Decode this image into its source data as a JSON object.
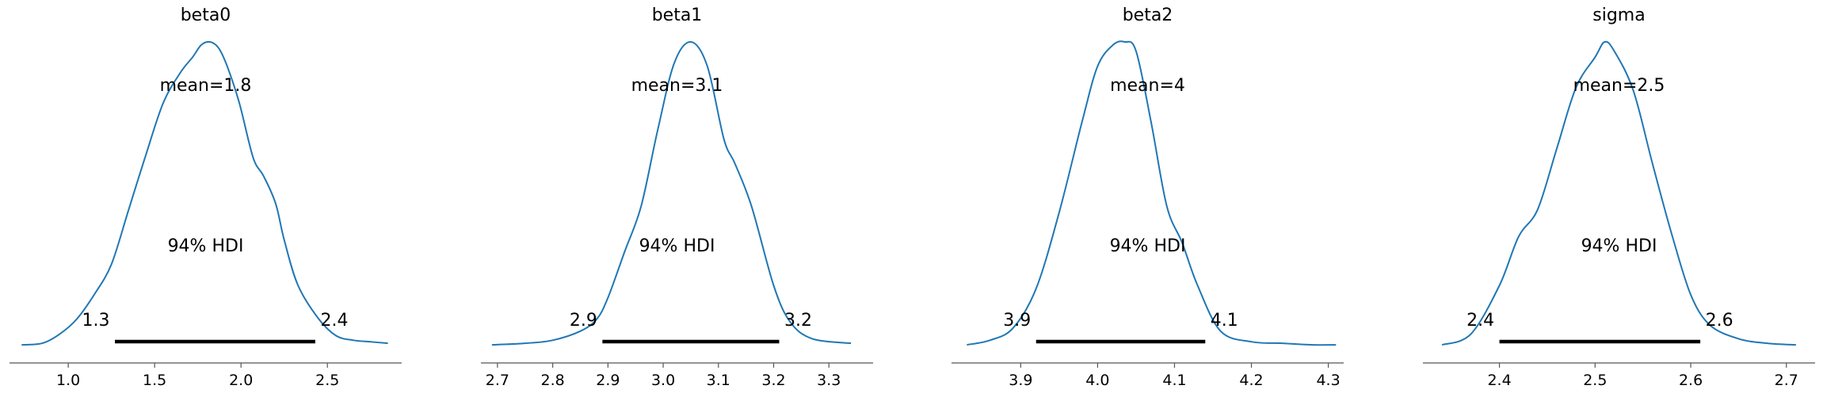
{
  "chart_data": [
    {
      "type": "area",
      "title": "beta0",
      "mean_label": "mean=1.8",
      "hdi_label": "94% HDI",
      "hdi": [
        1.27,
        2.43
      ],
      "hdi_low_label": "1.3",
      "hdi_high_label": "2.4",
      "xlim": [
        0.66,
        2.93
      ],
      "xticks": [
        1.0,
        1.5,
        2.0,
        2.5
      ],
      "xtick_labels": [
        "1.0",
        "1.5",
        "2.0",
        "2.5"
      ],
      "x": [
        0.73,
        0.85,
        0.95,
        1.05,
        1.15,
        1.25,
        1.35,
        1.45,
        1.55,
        1.65,
        1.72,
        1.77,
        1.82,
        1.87,
        1.92,
        1.99,
        2.07,
        2.13,
        2.2,
        2.25,
        2.33,
        2.45,
        2.55,
        2.65,
        2.75,
        2.85
      ],
      "y": [
        0.005,
        0.01,
        0.04,
        0.09,
        0.17,
        0.27,
        0.45,
        0.63,
        0.8,
        0.9,
        0.95,
        0.99,
        1.0,
        0.98,
        0.92,
        0.8,
        0.62,
        0.56,
        0.47,
        0.35,
        0.2,
        0.09,
        0.035,
        0.02,
        0.015,
        0.01
      ]
    },
    {
      "type": "area",
      "title": "beta1",
      "mean_label": "mean=3.1",
      "hdi_label": "94% HDI",
      "hdi": [
        2.89,
        3.21
      ],
      "hdi_low_label": "2.9",
      "hdi_high_label": "3.2",
      "xlim": [
        2.67,
        3.38
      ],
      "xticks": [
        2.7,
        2.8,
        2.9,
        3.0,
        3.1,
        3.2,
        3.3
      ],
      "xtick_labels": [
        "2.7",
        "2.8",
        "2.9",
        "3.0",
        "3.1",
        "3.2",
        "3.3"
      ],
      "x": [
        2.69,
        2.75,
        2.8,
        2.85,
        2.88,
        2.9,
        2.93,
        2.96,
        2.99,
        3.02,
        3.05,
        3.08,
        3.11,
        3.13,
        3.16,
        3.2,
        3.23,
        3.27,
        3.34
      ],
      "y": [
        0.005,
        0.01,
        0.02,
        0.05,
        0.09,
        0.16,
        0.31,
        0.46,
        0.71,
        0.93,
        1.0,
        0.92,
        0.68,
        0.6,
        0.46,
        0.2,
        0.08,
        0.025,
        0.01
      ]
    },
    {
      "type": "area",
      "title": "beta2",
      "mean_label": "mean=4",
      "hdi_label": "94% HDI",
      "hdi": [
        3.92,
        4.14
      ],
      "hdi_low_label": "3.9",
      "hdi_high_label": "4.1",
      "xlim": [
        3.81,
        4.32
      ],
      "xticks": [
        3.9,
        4.0,
        4.1,
        4.2,
        4.3
      ],
      "xtick_labels": [
        "3.9",
        "4.0",
        "4.1",
        "4.2",
        "4.3"
      ],
      "x": [
        3.83,
        3.86,
        3.89,
        3.92,
        3.95,
        3.98,
        4.0,
        4.02,
        4.035,
        4.05,
        4.07,
        4.09,
        4.11,
        4.13,
        4.16,
        4.2,
        4.24,
        4.28,
        4.31
      ],
      "y": [
        0.005,
        0.02,
        0.06,
        0.19,
        0.44,
        0.74,
        0.92,
        0.99,
        1.0,
        0.97,
        0.73,
        0.46,
        0.34,
        0.2,
        0.05,
        0.015,
        0.01,
        0.005,
        0.005
      ]
    },
    {
      "type": "area",
      "title": "sigma",
      "mean_label": "mean=2.5",
      "hdi_label": "94% HDI",
      "hdi": [
        2.4,
        2.61
      ],
      "hdi_low_label": "2.4",
      "hdi_high_label": "2.6",
      "xlim": [
        2.32,
        2.73
      ],
      "xticks": [
        2.4,
        2.5,
        2.6,
        2.7
      ],
      "xtick_labels": [
        "2.4",
        "2.5",
        "2.6",
        "2.7"
      ],
      "x": [
        2.34,
        2.37,
        2.4,
        2.42,
        2.44,
        2.46,
        2.48,
        2.5,
        2.51,
        2.52,
        2.54,
        2.56,
        2.58,
        2.6,
        2.62,
        2.65,
        2.68,
        2.71
      ],
      "y": [
        0.005,
        0.04,
        0.2,
        0.36,
        0.45,
        0.65,
        0.85,
        0.95,
        1.0,
        0.97,
        0.84,
        0.6,
        0.37,
        0.17,
        0.07,
        0.025,
        0.01,
        0.005
      ]
    }
  ],
  "colors": {
    "kde": "#1f77b4",
    "hdi_bar": "#000000",
    "axis": "#555555",
    "text": "#000000"
  }
}
